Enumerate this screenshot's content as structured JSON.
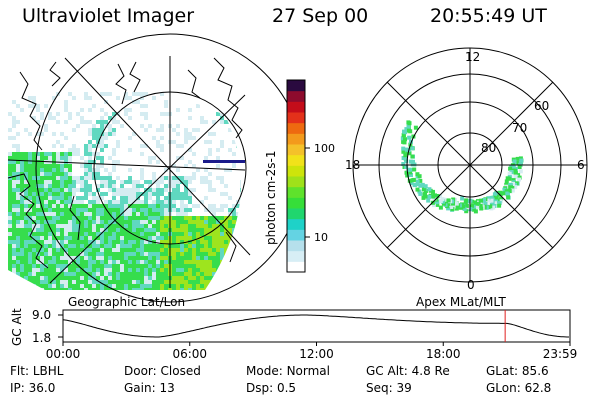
{
  "header": {
    "instrument": "Ultraviolet Imager",
    "date": "27 Sep 00",
    "time": "20:55:49 UT"
  },
  "colorbar": {
    "label": "photon cm-2s-1",
    "ticks": [
      "100",
      "10"
    ],
    "colors": [
      "#ffffff",
      "#d7eef5",
      "#b6e0ec",
      "#64d3e3",
      "#1ed2c8",
      "#20d66e",
      "#36de39",
      "#5fe22c",
      "#9fe11a",
      "#cde40b",
      "#f1e21a",
      "#f4c12a",
      "#f39a1c",
      "#ee6a10",
      "#e3311a",
      "#c40d1a",
      "#8d0b2d",
      "#2a0a3f"
    ]
  },
  "geo_map": {
    "caption": "Geographic Lat/Lon",
    "colors": {
      "low": "#d5ecf1",
      "mid": "#60d8c0",
      "high": "#36dd4d",
      "peak": "#9ee41e"
    }
  },
  "polar_map": {
    "caption": "Apex MLat/MLT",
    "mlt_labels": {
      "top": "12",
      "bottom": "0",
      "left": "18",
      "right": "6"
    },
    "lat_labels": [
      "60",
      "70",
      "80"
    ]
  },
  "altitude_plot": {
    "ylabel": "GC Alt",
    "yticks": [
      "9.0",
      "1.8"
    ],
    "xticks": [
      "00:00",
      "06:00",
      "12:00",
      "18:00",
      "23:59"
    ],
    "marker_hour": 20.93,
    "marker_color": "#e02020"
  },
  "params": [
    {
      "label": "Flt:",
      "value": "LBHL"
    },
    {
      "label": "Door:",
      "value": "Closed"
    },
    {
      "label": "Mode:",
      "value": "Normal"
    },
    {
      "label": "GC Alt:",
      "value": "4.8 Re"
    },
    {
      "label": "GLat:",
      "value": "85.6"
    },
    {
      "label": "IP:",
      "value": "36.0"
    },
    {
      "label": "Gain:",
      "value": "13"
    },
    {
      "label": "Dsp:",
      "value": "0.5"
    },
    {
      "label": "Seq:",
      "value": "39"
    },
    {
      "label": "GLon:",
      "value": "62.8"
    }
  ]
}
